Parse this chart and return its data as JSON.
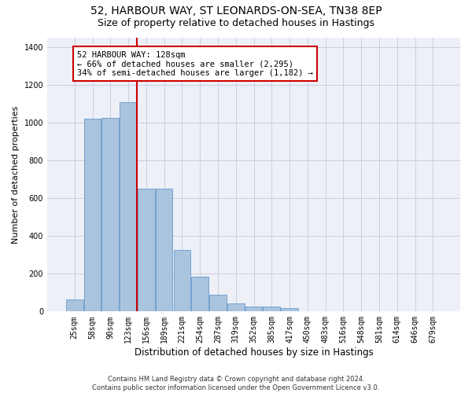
{
  "title_line1": "52, HARBOUR WAY, ST LEONARDS-ON-SEA, TN38 8EP",
  "title_line2": "Size of property relative to detached houses in Hastings",
  "xlabel": "Distribution of detached houses by size in Hastings",
  "ylabel": "Number of detached properties",
  "categories": [
    "25sqm",
    "58sqm",
    "90sqm",
    "123sqm",
    "156sqm",
    "189sqm",
    "221sqm",
    "254sqm",
    "287sqm",
    "319sqm",
    "352sqm",
    "385sqm",
    "417sqm",
    "450sqm",
    "483sqm",
    "516sqm",
    "548sqm",
    "581sqm",
    "614sqm",
    "646sqm",
    "679sqm"
  ],
  "values": [
    65,
    1020,
    1025,
    1105,
    650,
    650,
    325,
    185,
    90,
    45,
    28,
    25,
    18,
    0,
    0,
    0,
    0,
    0,
    0,
    0,
    0
  ],
  "bar_color": "#aac4de",
  "bar_edge_color": "#6699cc",
  "vline_x_idx": 3.5,
  "vline_color": "#cc0000",
  "annotation_text": "52 HARBOUR WAY: 128sqm\n← 66% of detached houses are smaller (2,295)\n34% of semi-detached houses are larger (1,182) →",
  "annotation_box_color": "#ffffff",
  "annotation_box_edge": "#cc0000",
  "ylim": [
    0,
    1450
  ],
  "yticks": [
    0,
    200,
    400,
    600,
    800,
    1000,
    1200,
    1400
  ],
  "grid_color": "#ccccdd",
  "bg_color": "#eef0f8",
  "footnote": "Contains HM Land Registry data © Crown copyright and database right 2024.\nContains public sector information licensed under the Open Government Licence v3.0.",
  "title_fontsize": 10,
  "subtitle_fontsize": 9,
  "xlabel_fontsize": 8.5,
  "ylabel_fontsize": 8,
  "tick_fontsize": 7,
  "annot_fontsize": 7.5,
  "footnote_fontsize": 6
}
